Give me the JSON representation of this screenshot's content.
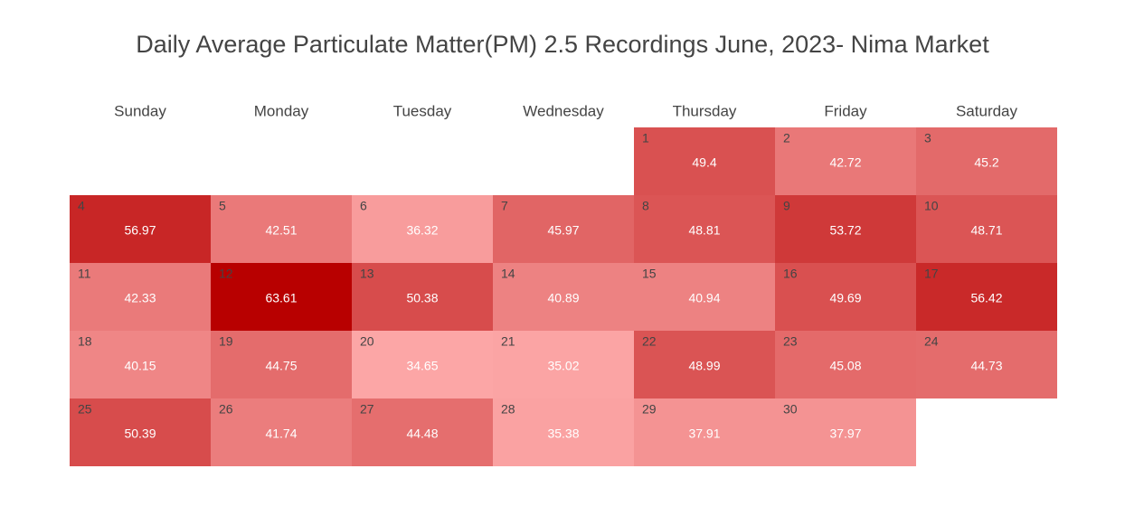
{
  "chart_data": {
    "type": "heatmap",
    "title": "Daily Average Particulate Matter(PM) 2.5 Recordings June, 2023- Nima Market",
    "xlabel": "",
    "ylabel": "",
    "weekdays": [
      "Sunday",
      "Monday",
      "Tuesday",
      "Wednesday",
      "Thursday",
      "Friday",
      "Saturday"
    ],
    "first_weekday_index": 4,
    "days": [
      1,
      2,
      3,
      4,
      5,
      6,
      7,
      8,
      9,
      10,
      11,
      12,
      13,
      14,
      15,
      16,
      17,
      18,
      19,
      20,
      21,
      22,
      23,
      24,
      25,
      26,
      27,
      28,
      29,
      30
    ],
    "values": [
      49.4,
      42.72,
      45.2,
      56.97,
      42.51,
      36.32,
      45.97,
      48.81,
      53.72,
      48.71,
      42.33,
      63.61,
      50.38,
      40.89,
      40.94,
      49.69,
      56.42,
      40.15,
      44.75,
      34.65,
      35.02,
      48.99,
      45.08,
      44.73,
      50.39,
      41.74,
      44.48,
      35.38,
      37.91,
      37.97
    ],
    "color_scale": {
      "low": "#fca6a6",
      "high": "#b80000"
    },
    "grid": false,
    "legend": "none"
  }
}
